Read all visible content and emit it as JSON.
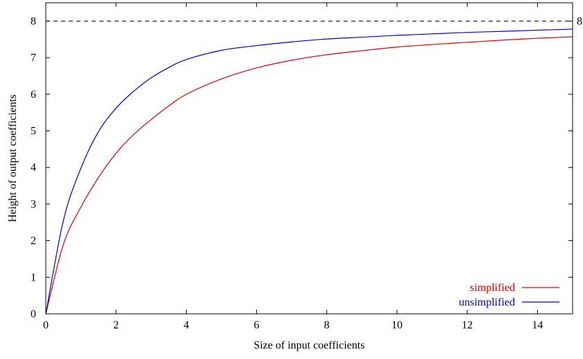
{
  "chart_data": {
    "type": "line",
    "title": "",
    "xlabel": "Size of input coefficients",
    "ylabel": "Height of output coefficients",
    "xlim": [
      0,
      15
    ],
    "ylim": [
      0,
      8.5
    ],
    "x_ticks": [
      "0",
      "2",
      "4",
      "6",
      "8",
      "10",
      "12",
      "14"
    ],
    "y_ticks": [
      "0",
      "1",
      "2",
      "3",
      "4",
      "5",
      "6",
      "7",
      "8"
    ],
    "grid": false,
    "legend_position": "bottom-right",
    "reference_line": {
      "y": 8,
      "label": "8",
      "style": "dashed",
      "color": "#000000"
    },
    "series": [
      {
        "name": "simplified",
        "color": "#e00000",
        "x": [
          0,
          0.5,
          1,
          1.5,
          2,
          2.5,
          3,
          3.5,
          4,
          5,
          6,
          7,
          8,
          9,
          10,
          11,
          12,
          13,
          14,
          15
        ],
        "y": [
          0,
          1.9,
          2.92,
          3.73,
          4.39,
          4.9,
          5.31,
          5.68,
          6.0,
          6.42,
          6.72,
          6.93,
          7.08,
          7.19,
          7.29,
          7.36,
          7.42,
          7.48,
          7.53,
          7.57
        ]
      },
      {
        "name": "unsimplified",
        "color": "#0000d0",
        "x": [
          0,
          0.5,
          1,
          1.5,
          2,
          2.5,
          3,
          3.5,
          4,
          5,
          6,
          7,
          8,
          9,
          10,
          11,
          12,
          13,
          14,
          15
        ],
        "y": [
          0,
          2.55,
          3.98,
          4.98,
          5.62,
          6.08,
          6.45,
          6.73,
          6.95,
          7.2,
          7.33,
          7.43,
          7.51,
          7.56,
          7.61,
          7.65,
          7.69,
          7.72,
          7.75,
          7.78
        ]
      }
    ]
  }
}
